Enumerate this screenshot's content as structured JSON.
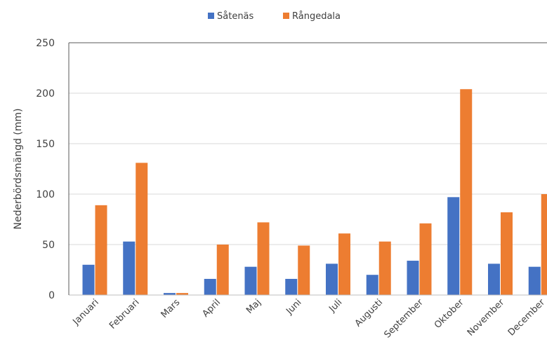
{
  "chart_data": {
    "type": "bar",
    "ylabel": "Nederbördsmängd (mm)",
    "xlabel": "",
    "ylim": [
      0,
      250
    ],
    "yticks": [
      0,
      50,
      100,
      150,
      200,
      250
    ],
    "grid": true,
    "legend_position": "top",
    "categories": [
      "Januari",
      "Februari",
      "Mars",
      "April",
      "Maj",
      "Juni",
      "Juli",
      "Augusti",
      "September",
      "Oktober",
      "November",
      "December"
    ],
    "series": [
      {
        "name": "Såtenäs",
        "color": "#4472C4",
        "values": [
          30,
          53,
          2,
          16,
          28,
          16,
          31,
          20,
          34,
          97,
          31,
          28
        ]
      },
      {
        "name": "Rångedala",
        "color": "#ED7D31",
        "values": [
          89,
          131,
          2,
          50,
          72,
          49,
          61,
          53,
          71,
          204,
          82,
          100
        ]
      }
    ]
  }
}
